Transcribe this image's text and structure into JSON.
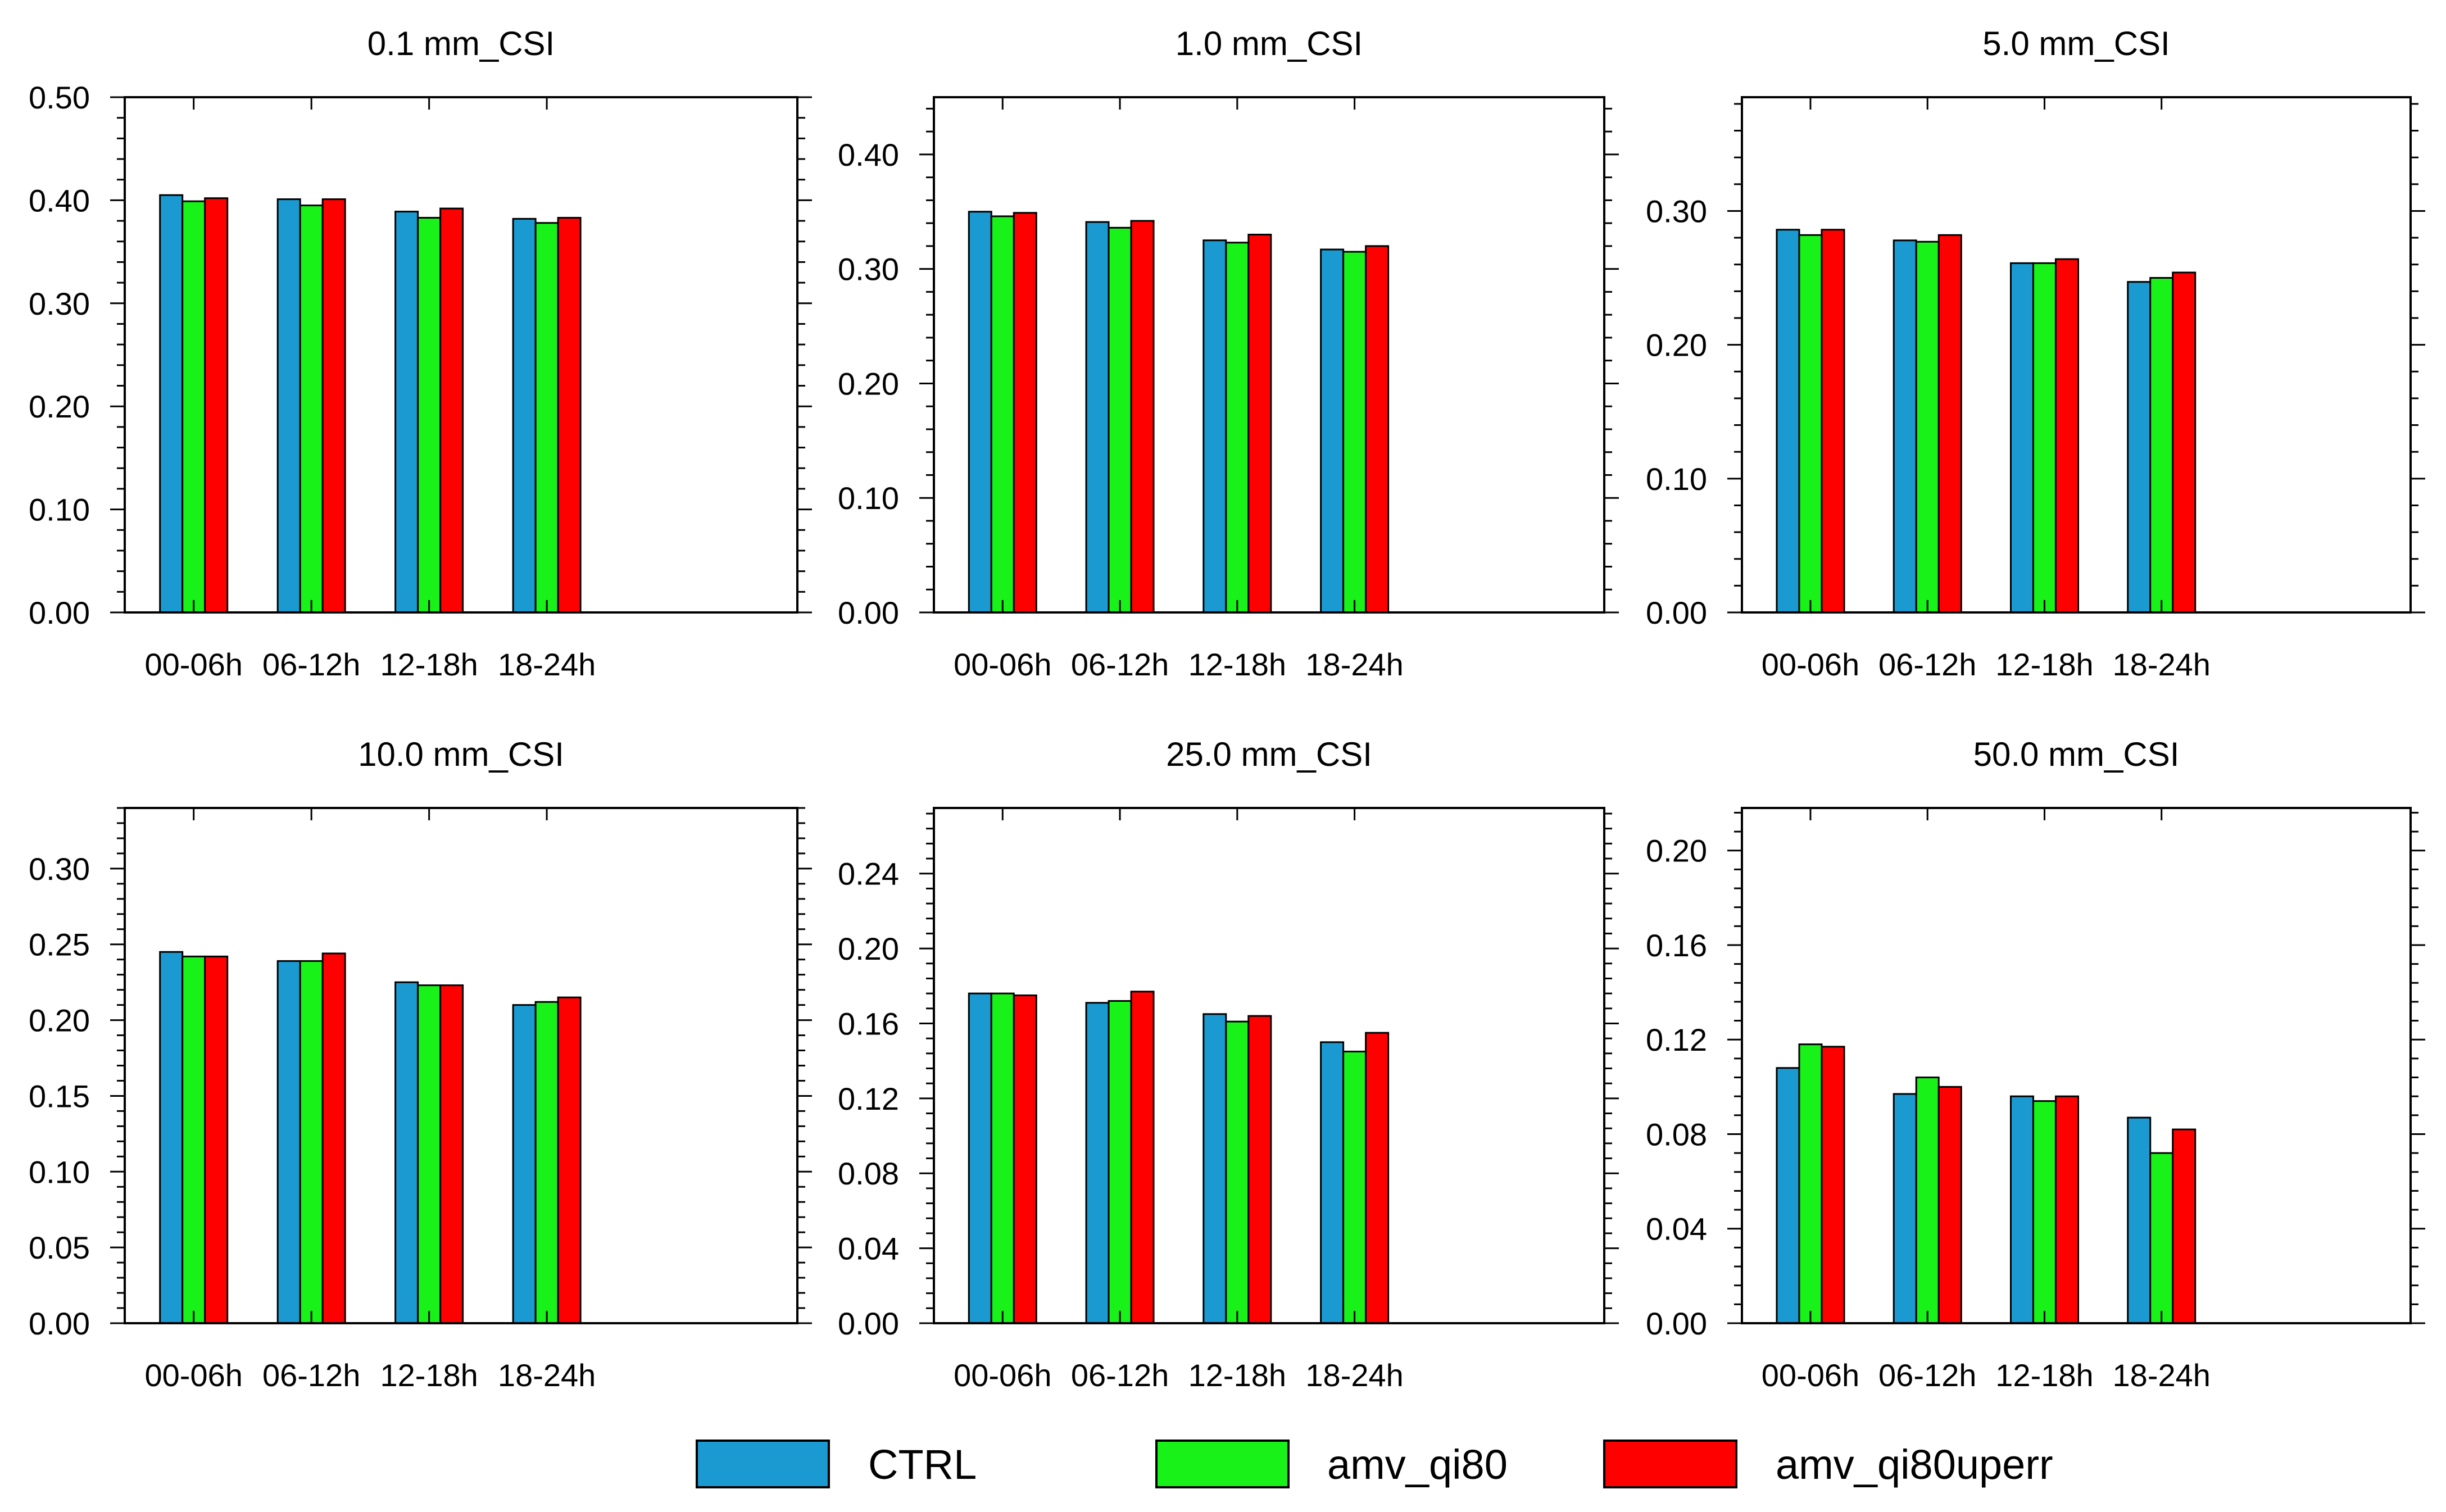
{
  "legend": [
    {
      "name": "CTRL",
      "color": "#1a9ad0"
    },
    {
      "name": "amv_qi80",
      "color": "#19f219"
    },
    {
      "name": "amv_qi80uperr",
      "color": "#ff0000"
    }
  ],
  "chart_data": [
    {
      "type": "bar",
      "title": "0.1 mm_CSI",
      "categories": [
        "00-06h",
        "06-12h",
        "12-18h",
        "18-24h"
      ],
      "ylim": [
        0,
        0.5
      ],
      "yticks": [
        "0.00",
        "0.10",
        "0.20",
        "0.30",
        "0.40",
        "0.50"
      ],
      "series": [
        {
          "name": "CTRL",
          "values": [
            0.405,
            0.401,
            0.389,
            0.382
          ]
        },
        {
          "name": "amv_qi80",
          "values": [
            0.399,
            0.395,
            0.383,
            0.378
          ]
        },
        {
          "name": "amv_qi80uperr",
          "values": [
            0.402,
            0.401,
            0.392,
            0.383
          ]
        }
      ]
    },
    {
      "type": "bar",
      "title": "1.0 mm_CSI",
      "categories": [
        "00-06h",
        "06-12h",
        "12-18h",
        "18-24h"
      ],
      "ylim": [
        0,
        0.45
      ],
      "yticks": [
        "0.00",
        "0.10",
        "0.20",
        "0.30",
        "0.40"
      ],
      "series": [
        {
          "name": "CTRL",
          "values": [
            0.35,
            0.341,
            0.325,
            0.317
          ]
        },
        {
          "name": "amv_qi80",
          "values": [
            0.346,
            0.336,
            0.323,
            0.315
          ]
        },
        {
          "name": "amv_qi80uperr",
          "values": [
            0.349,
            0.342,
            0.33,
            0.32
          ]
        }
      ]
    },
    {
      "type": "bar",
      "title": "5.0 mm_CSI",
      "categories": [
        "00-06h",
        "06-12h",
        "12-18h",
        "18-24h"
      ],
      "ylim": [
        0,
        0.385
      ],
      "yticks": [
        "0.00",
        "0.10",
        "0.20",
        "0.30"
      ],
      "series": [
        {
          "name": "CTRL",
          "values": [
            0.286,
            0.278,
            0.261,
            0.247
          ]
        },
        {
          "name": "amv_qi80",
          "values": [
            0.282,
            0.277,
            0.261,
            0.25
          ]
        },
        {
          "name": "amv_qi80uperr",
          "values": [
            0.286,
            0.282,
            0.264,
            0.254
          ]
        }
      ]
    },
    {
      "type": "bar",
      "title": "10.0 mm_CSI",
      "categories": [
        "00-06h",
        "06-12h",
        "12-18h",
        "18-24h"
      ],
      "ylim": [
        0,
        0.34
      ],
      "yticks": [
        "0.00",
        "0.05",
        "0.10",
        "0.15",
        "0.20",
        "0.25",
        "0.30"
      ],
      "series": [
        {
          "name": "CTRL",
          "values": [
            0.245,
            0.239,
            0.225,
            0.21
          ]
        },
        {
          "name": "amv_qi80",
          "values": [
            0.242,
            0.239,
            0.223,
            0.212
          ]
        },
        {
          "name": "amv_qi80uperr",
          "values": [
            0.242,
            0.244,
            0.223,
            0.215
          ]
        }
      ]
    },
    {
      "type": "bar",
      "title": "25.0 mm_CSI",
      "categories": [
        "00-06h",
        "06-12h",
        "12-18h",
        "18-24h"
      ],
      "ylim": [
        0,
        0.275
      ],
      "yticks": [
        "0.00",
        "0.04",
        "0.08",
        "0.12",
        "0.16",
        "0.20",
        "0.24"
      ],
      "series": [
        {
          "name": "CTRL",
          "values": [
            0.176,
            0.171,
            0.165,
            0.15
          ]
        },
        {
          "name": "amv_qi80",
          "values": [
            0.176,
            0.172,
            0.161,
            0.145
          ]
        },
        {
          "name": "amv_qi80uperr",
          "values": [
            0.175,
            0.177,
            0.164,
            0.155
          ]
        }
      ]
    },
    {
      "type": "bar",
      "title": "50.0 mm_CSI",
      "categories": [
        "00-06h",
        "06-12h",
        "12-18h",
        "18-24h"
      ],
      "ylim": [
        0,
        0.218
      ],
      "yticks": [
        "0.00",
        "0.04",
        "0.08",
        "0.12",
        "0.16",
        "0.20"
      ],
      "series": [
        {
          "name": "CTRL",
          "values": [
            0.108,
            0.097,
            0.096,
            0.087
          ]
        },
        {
          "name": "amv_qi80",
          "values": [
            0.118,
            0.104,
            0.094,
            0.072
          ]
        },
        {
          "name": "amv_qi80uperr",
          "values": [
            0.117,
            0.1,
            0.096,
            0.082
          ]
        }
      ]
    }
  ]
}
